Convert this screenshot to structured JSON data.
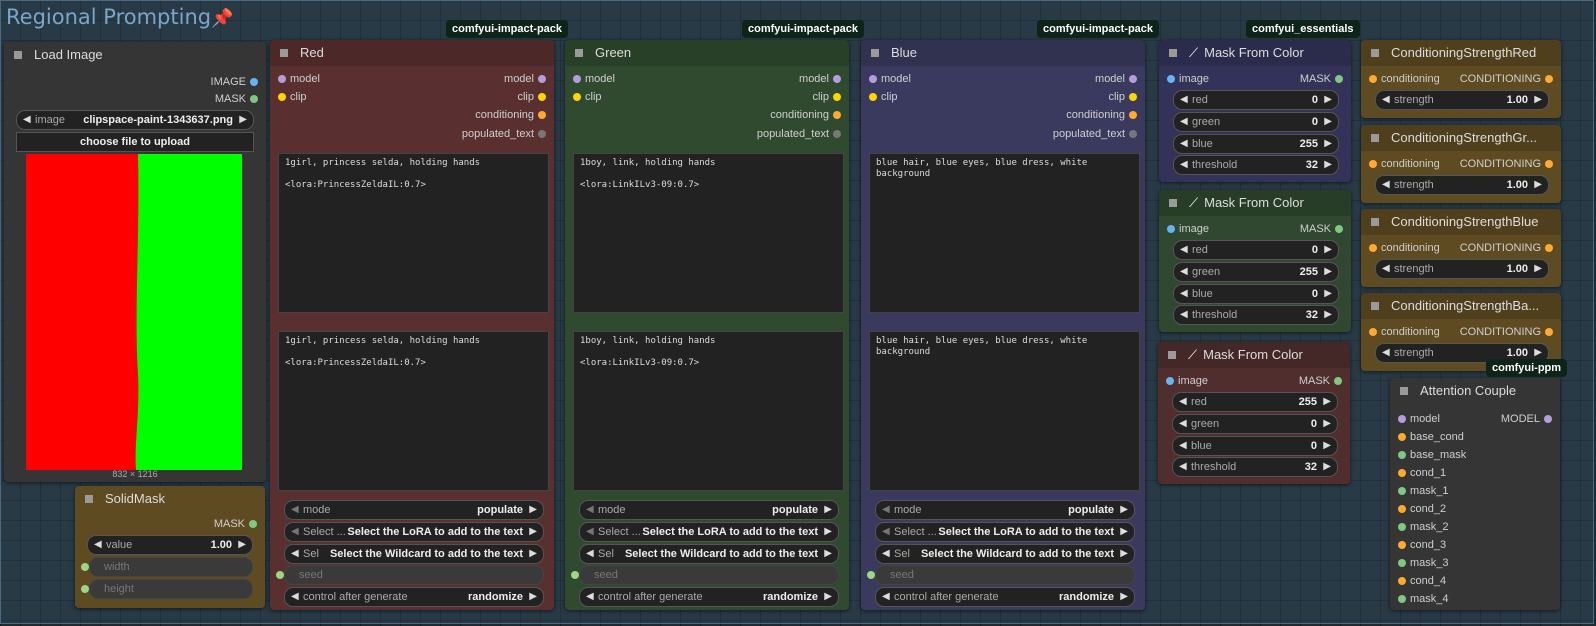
{
  "group": {
    "title": "Regional Prompting"
  },
  "badges": {
    "red": "comfyui-impact-pack",
    "green": "comfyui-impact-pack",
    "blue": "comfyui-impact-pack",
    "essentials": "comfyui_essentials",
    "ppm": "comfyui-ppm"
  },
  "load_image": {
    "title": "Load Image",
    "out_image": "IMAGE",
    "out_mask": "MASK",
    "image_label": "image",
    "image_value": "clipspace-paint-1343637.png",
    "upload_label": "choose file to upload",
    "dimensions": "832 × 1216",
    "colors": {
      "left": "#ff0000",
      "right": "#00ff00"
    }
  },
  "solid_mask": {
    "title": "SolidMask",
    "out_mask": "MASK",
    "value_label": "value",
    "value": "1.00",
    "width_label": "width",
    "height_label": "height"
  },
  "wildcard_nodes": [
    {
      "title": "Red",
      "in_model": "model",
      "in_clip": "clip",
      "out_model": "model",
      "out_clip": "clip",
      "out_conditioning": "conditioning",
      "out_populated": "populated_text",
      "text1": "1girl, princess selda, holding hands\n\n<lora:PrincessZeldaIL:0.7>",
      "text2": "1girl, princess selda, holding hands\n\n<lora:PrincessZeldaIL:0.7>",
      "mode_label": "mode",
      "mode_value": "populate",
      "lora_label": "Select ...",
      "lora_value": "Select the LoRA to add to the text",
      "wild_label": "Sel",
      "wild_value": "Select the Wildcard to add to the text",
      "seed_label": "seed",
      "control_label": "control after generate",
      "control_value": "randomize"
    },
    {
      "title": "Green",
      "in_model": "model",
      "in_clip": "clip",
      "out_model": "model",
      "out_clip": "clip",
      "out_conditioning": "conditioning",
      "out_populated": "populated_text",
      "text1": "1boy, link, holding hands\n\n<lora:LinkILv3-09:0.7>",
      "text2": "1boy, link, holding hands\n\n<lora:LinkILv3-09:0.7>",
      "mode_label": "mode",
      "mode_value": "populate",
      "lora_label": "Select ...",
      "lora_value": "Select the LoRA to add to the text",
      "wild_label": "Sel",
      "wild_value": "Select the Wildcard to add to the text",
      "seed_label": "seed",
      "control_label": "control after generate",
      "control_value": "randomize"
    },
    {
      "title": "Blue",
      "in_model": "model",
      "in_clip": "clip",
      "out_model": "model",
      "out_clip": "clip",
      "out_conditioning": "conditioning",
      "out_populated": "populated_text",
      "text1": "blue hair, blue eyes, blue dress, white\nbackground",
      "text2": "blue hair, blue eyes, blue dress, white\nbackground",
      "mode_label": "mode",
      "mode_value": "populate",
      "lora_label": "Select ...",
      "lora_value": "Select the LoRA to add to the text",
      "wild_label": "Sel",
      "wild_value": "Select the Wildcard to add to the text",
      "seed_label": "seed",
      "control_label": "control after generate",
      "control_value": "randomize"
    }
  ],
  "mask_nodes": [
    {
      "title": "Mask From Color",
      "in_image": "image",
      "out_mask": "MASK",
      "red_label": "red",
      "red": "0",
      "green_label": "green",
      "green": "0",
      "blue_label": "blue",
      "blue": "255",
      "threshold_label": "threshold",
      "threshold": "32"
    },
    {
      "title": "Mask From Color",
      "in_image": "image",
      "out_mask": "MASK",
      "red_label": "red",
      "red": "0",
      "green_label": "green",
      "green": "255",
      "blue_label": "blue",
      "blue": "0",
      "threshold_label": "threshold",
      "threshold": "32"
    },
    {
      "title": "Mask From Color",
      "in_image": "image",
      "out_mask": "MASK",
      "red_label": "red",
      "red": "255",
      "green_label": "green",
      "green": "0",
      "blue_label": "blue",
      "blue": "0",
      "threshold_label": "threshold",
      "threshold": "32"
    }
  ],
  "strength_nodes": [
    {
      "title": "ConditioningStrengthRed",
      "in": "conditioning",
      "out": "CONDITIONING",
      "label": "strength",
      "value": "1.00"
    },
    {
      "title": "ConditioningStrengthGr...",
      "in": "conditioning",
      "out": "CONDITIONING",
      "label": "strength",
      "value": "1.00"
    },
    {
      "title": "ConditioningStrengthBlue",
      "in": "conditioning",
      "out": "CONDITIONING",
      "label": "strength",
      "value": "1.00"
    },
    {
      "title": "ConditioningStrengthBa...",
      "in": "conditioning",
      "out": "CONDITIONING",
      "label": "strength",
      "value": "1.00"
    }
  ],
  "attention_couple": {
    "title": "Attention Couple",
    "out_model": "MODEL",
    "inputs": [
      "model",
      "base_cond",
      "base_mask",
      "cond_1",
      "mask_1",
      "cond_2",
      "mask_2",
      "cond_3",
      "mask_3",
      "cond_4",
      "mask_4"
    ]
  },
  "colors": {
    "red_node": "#5a2f2f",
    "green_node": "#2f4a2f",
    "blue_node": "#3a3a5e",
    "mask_blue": "#33335a",
    "mask_green": "#2f482f",
    "mask_red": "#502e2e",
    "strength_node": "#5e4b22",
    "solidmask_node": "#5e4b22"
  }
}
